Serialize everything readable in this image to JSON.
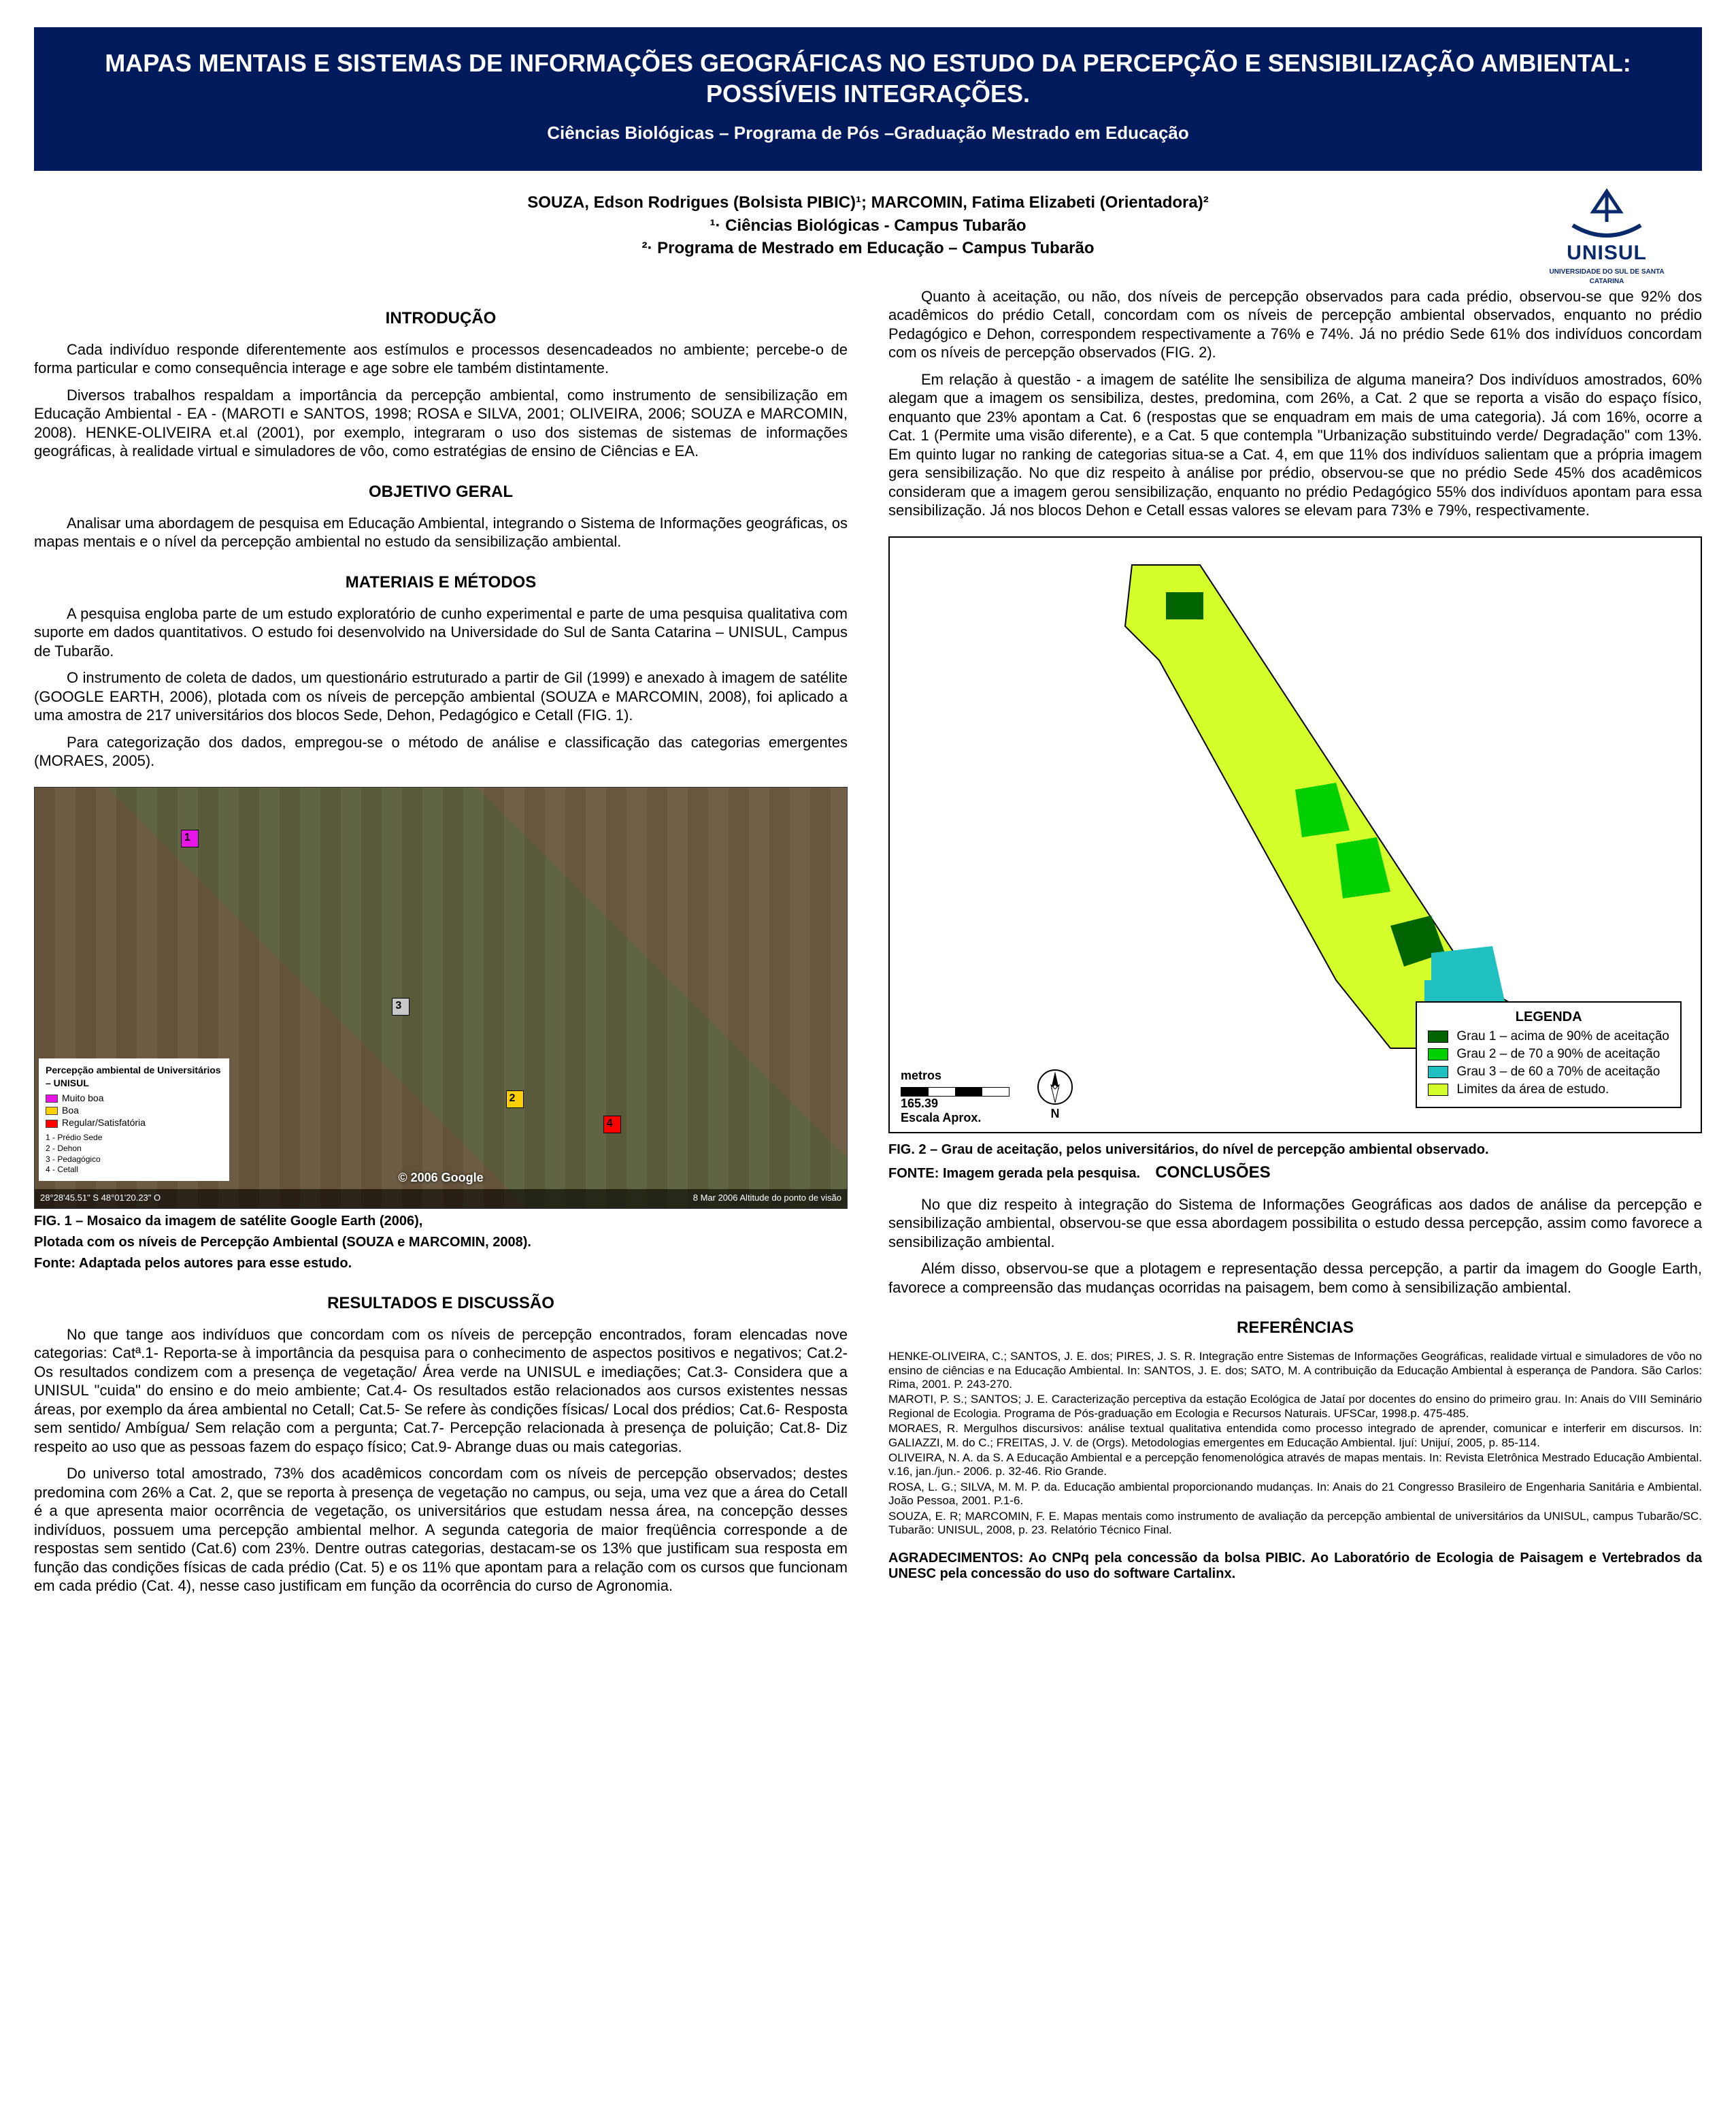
{
  "title": "MAPAS MENTAIS E SISTEMAS DE INFORMAÇÕES GEOGRÁFICAS NO ESTUDO DA PERCEPÇÃO E SENSIBILIZAÇÃO AMBIENTAL: POSSÍVEIS INTEGRAÇÕES.",
  "subtitle": "Ciências Biológicas – Programa de Pós –Graduação Mestrado em Educação",
  "authors_line": "SOUZA, Edson Rodrigues (Bolsista PIBIC)¹; MARCOMIN, Fatima Elizabeti (Orientadora)²",
  "affil1": "¹· Ciências Biológicas - Campus Tubarão",
  "affil2": "²· Programa de Mestrado em Educação – Campus Tubarão",
  "logo": {
    "text": "UNISUL",
    "sub": "UNIVERSIDADE DO SUL DE SANTA CATARINA",
    "stroke": "#0a2a6b"
  },
  "headings": {
    "intro": "INTRODUÇÃO",
    "obj": "OBJETIVO GERAL",
    "mat": "MATERIAIS E MÉTODOS",
    "res": "RESULTADOS E DISCUSSÃO",
    "conc": "CONCLUSÕES",
    "ref": "REFERÊNCIAS"
  },
  "intro": {
    "p1": "Cada indivíduo responde diferentemente aos estímulos e processos desencadeados no ambiente; percebe-o de forma particular e como consequência interage e age sobre ele também distintamente.",
    "p2": "Diversos trabalhos respaldam a importância da percepção ambiental, como instrumento de sensibilização em Educação Ambiental - EA - (MAROTI e SANTOS, 1998; ROSA e SILVA, 2001; OLIVEIRA, 2006; SOUZA e MARCOMIN, 2008). HENKE-OLIVEIRA et.al (2001), por exemplo, integraram o uso dos sistemas de sistemas de informações geográficas, à realidade virtual e simuladores de vôo, como estratégias de ensino de Ciências e EA."
  },
  "objetivo": {
    "p1": "Analisar uma abordagem de pesquisa em Educação Ambiental, integrando o Sistema de Informações geográficas, os mapas mentais e o nível da percepção ambiental no estudo da sensibilização ambiental."
  },
  "materiais": {
    "p1": "A pesquisa engloba parte de um estudo exploratório de cunho experimental e parte de uma pesquisa qualitativa com suporte em dados quantitativos. O estudo foi desenvolvido na Universidade do Sul de Santa Catarina – UNISUL, Campus de Tubarão.",
    "p2": "O instrumento de coleta de dados, um questionário estruturado a partir de Gil (1999) e anexado à imagem de satélite (GOOGLE EARTH, 2006), plotada com os níveis de percepção ambiental (SOUZA e MARCOMIN, 2008), foi aplicado a uma amostra de 217 universitários dos blocos Sede, Dehon, Pedagógico e Cetall (FIG. 1).",
    "p3": "Para categorização dos dados, empregou-se o método de análise e classificação das categorias emergentes (MORAES, 2005)."
  },
  "fig1": {
    "caption_l1": "FIG. 1 – Mosaico da imagem de satélite Google Earth (2006),",
    "caption_l2": "Plotada com os níveis de Percepção Ambiental (SOUZA e MARCOMIN, 2008).",
    "caption_l3": "Fonte: Adaptada pelos autores para esse  estudo.",
    "legend_title": "Percepção ambiental de Universitários – UNISUL",
    "points": [
      {
        "n": "1",
        "x": 18,
        "y": 10,
        "color": "#e815e8"
      },
      {
        "n": "3",
        "x": 44,
        "y": 50,
        "color": "#c8c8c8"
      },
      {
        "n": "2",
        "x": 58,
        "y": 72,
        "color": "#ffd000"
      },
      {
        "n": "4",
        "x": 70,
        "y": 78,
        "color": "#ff0000"
      }
    ],
    "legend_items": [
      {
        "label": "Muito boa",
        "color": "#e815e8"
      },
      {
        "label": "Boa",
        "color": "#ffd000"
      },
      {
        "label": "Regular/Satisfatória",
        "color": "#ff0000"
      }
    ],
    "legend_nums": "1 - Prédio Sede\n2 - Dehon\n3 - Pedagógico\n4 - Cetall",
    "google": "© 2006 Google",
    "coord_left": "28°28'45.51\" S   48°01'20.23\" O",
    "coord_right": "8 Mar 2006  Altitude do ponto de visão"
  },
  "resultados": {
    "p1": "No que tange aos indivíduos que concordam com os níveis de percepção encontrados, foram elencadas nove categorias: Catª.1- Reporta-se à importância da pesquisa para o conhecimento de aspectos positivos e negativos; Cat.2- Os resultados condizem com a presença de vegetação/ Área verde na UNISUL e imediações; Cat.3- Considera que a UNISUL \"cuida\" do ensino e do meio ambiente; Cat.4- Os resultados estão relacionados aos cursos existentes nessas áreas, por exemplo da área ambiental no Cetall; Cat.5- Se refere às condições físicas/ Local dos prédios; Cat.6- Resposta sem sentido/ Ambígua/ Sem relação com a pergunta; Cat.7- Percepção relacionada à presença de poluição; Cat.8- Diz respeito ao uso que as pessoas fazem do espaço físico; Cat.9- Abrange duas ou mais categorias.",
    "p2": "Do universo total amostrado, 73% dos acadêmicos concordam com os níveis de percepção observados; destes predomina com 26% a Cat. 2, que se reporta à presença de vegetação no campus, ou seja, uma vez que a área do Cetall é a que apresenta maior ocorrência de vegetação, os universitários que estudam nessa área, na concepção desses indivíduos, possuem uma percepção ambiental melhor.  A segunda categoria de maior freqüência corresponde a de respostas sem sentido (Cat.6) com 23%. Dentre outras categorias, destacam-se os 13% que justificam sua resposta em função das condições físicas de cada prédio (Cat. 5) e os 11% que apontam para a relação com os cursos que funcionam em cada prédio (Cat. 4), nesse caso justificam em função da ocorrência do curso de Agronomia."
  },
  "right": {
    "p1": "Quanto à aceitação, ou não, dos níveis de percepção observados para cada prédio, observou-se que 92% dos acadêmicos do prédio Cetall, concordam com os níveis de percepção ambiental observados, enquanto no prédio Pedagógico e Dehon, correspondem respectivamente a 76% e 74%. Já no prédio Sede 61% dos indivíduos concordam com os níveis de percepção observados (FIG. 2).",
    "p2": "Em relação à questão - a imagem de satélite lhe sensibiliza de alguma maneira? Dos indivíduos amostrados, 60% alegam que a imagem os sensibiliza, destes, predomina, com 26%, a Cat. 2 que se reporta a visão do espaço físico, enquanto que 23% apontam a Cat. 6 (respostas que se enquadram em mais de uma categoria). Já com 16%, ocorre a Cat. 1 (Permite uma visão diferente), e a Cat. 5 que contempla \"Urbanização substituindo verde/ Degradação\" com 13%. Em quinto lugar no ranking de categorias situa-se a Cat. 4, em que 11% dos indivíduos salientam que a própria imagem gera sensibilização. No que diz respeito à análise por prédio, observou-se que no prédio Sede 45% dos acadêmicos consideram que a imagem gerou sensibilização, enquanto no prédio Pedagógico 55% dos indivíduos apontam para essa sensibilização. Já nos blocos Dehon e Cetall essas valores se elevam para 73% e 79%, respectivamente."
  },
  "fig2": {
    "colors": {
      "bg": "#ffffff",
      "area": "#d4ff2a",
      "grau1": "#006400",
      "grau2": "#00d000",
      "grau3": "#20c0c0",
      "border": "#000000"
    },
    "legend_title": "LEGENDA",
    "legend": [
      {
        "key": "grau1",
        "label": "Grau 1 – acima de 90% de aceitação"
      },
      {
        "key": "grau2",
        "label": "Grau 2  –  de 70 a 90% de aceitação"
      },
      {
        "key": "grau3",
        "label": "Grau 3 – de 60 a 70% de aceitação"
      },
      {
        "key": "area",
        "label": "Limites da área de estudo."
      }
    ],
    "scale_label": "metros",
    "scale_value": "165.39",
    "scale_sub": "Escala Aprox.",
    "north": "N",
    "caption_l1": "FIG. 2 – Grau de aceitação, pelos universitários, do nível de percepção ambiental observado.",
    "caption_l2": "FONTE: Imagem gerada pela pesquisa."
  },
  "conclusoes": {
    "p1": "No que diz respeito à integração do Sistema de Informações Geográficas aos dados de análise da percepção e sensibilização ambiental, observou-se que essa abordagem possibilita o estudo dessa percepção, assim como favorece a sensibilização ambiental.",
    "p2": "Além disso, observou-se que a plotagem e representação dessa percepção, a partir da imagem do Google Earth, favorece a compreensão das mudanças ocorridas na paisagem, bem como à sensibilização ambiental."
  },
  "referencias": [
    "HENKE-OLIVEIRA, C.; SANTOS, J. E. dos; PIRES, J. S. R. Integração entre Sistemas de Informações Geográficas, realidade virtual e simuladores de vôo no ensino de ciências e na Educação Ambiental. In: SANTOS, J. E. dos; SATO, M. A contribuição da Educação Ambiental à esperança de Pandora. São Carlos: Rima, 2001. P. 243-270.",
    "MAROTI, P. S.; SANTOS; J. E. Caracterização perceptiva da estação Ecológica de Jataí por docentes do ensino do primeiro grau. In: Anais do VIII Seminário Regional de Ecologia. Programa de Pós-graduação em Ecologia e Recursos Naturais. UFSCar, 1998.p. 475-485.",
    "MORAES, R. Mergulhos discursivos: análise textual qualitativa entendida como processo integrado de aprender, comunicar e interferir em discursos. In: GALIAZZI, M. do C.; FREITAS, J. V. de (Orgs). Metodologias emergentes em Educação Ambiental. Ijuí: Unijuí, 2005, p. 85-114.",
    "OLIVEIRA, N. A. da S. A Educação Ambiental e a percepção fenomenológica através de mapas mentais. In: Revista Eletrônica Mestrado Educação Ambiental. v.16, jan./jun.- 2006. p. 32-46. Rio Grande.",
    "ROSA, L. G.; SILVA, M. M. P. da. Educação ambiental proporcionando mudanças. In: Anais do 21 Congresso Brasileiro de Engenharia Sanitária e Ambiental. João Pessoa, 2001. P.1-6.",
    "SOUZA, E. R; MARCOMIN, F. E. Mapas mentais como instrumento de avaliação da percepção ambiental de universitários da UNISUL, campus Tubarão/SC. Tubarão: UNISUL, 2008, p. 23. Relatório Técnico Final."
  ],
  "agradecimentos": "AGRADECIMENTOS: Ao CNPq  pela concessão da bolsa PIBIC. Ao Laboratório de Ecologia de Paisagem e Vertebrados da UNESC pela concessão do uso do software Cartalinx."
}
